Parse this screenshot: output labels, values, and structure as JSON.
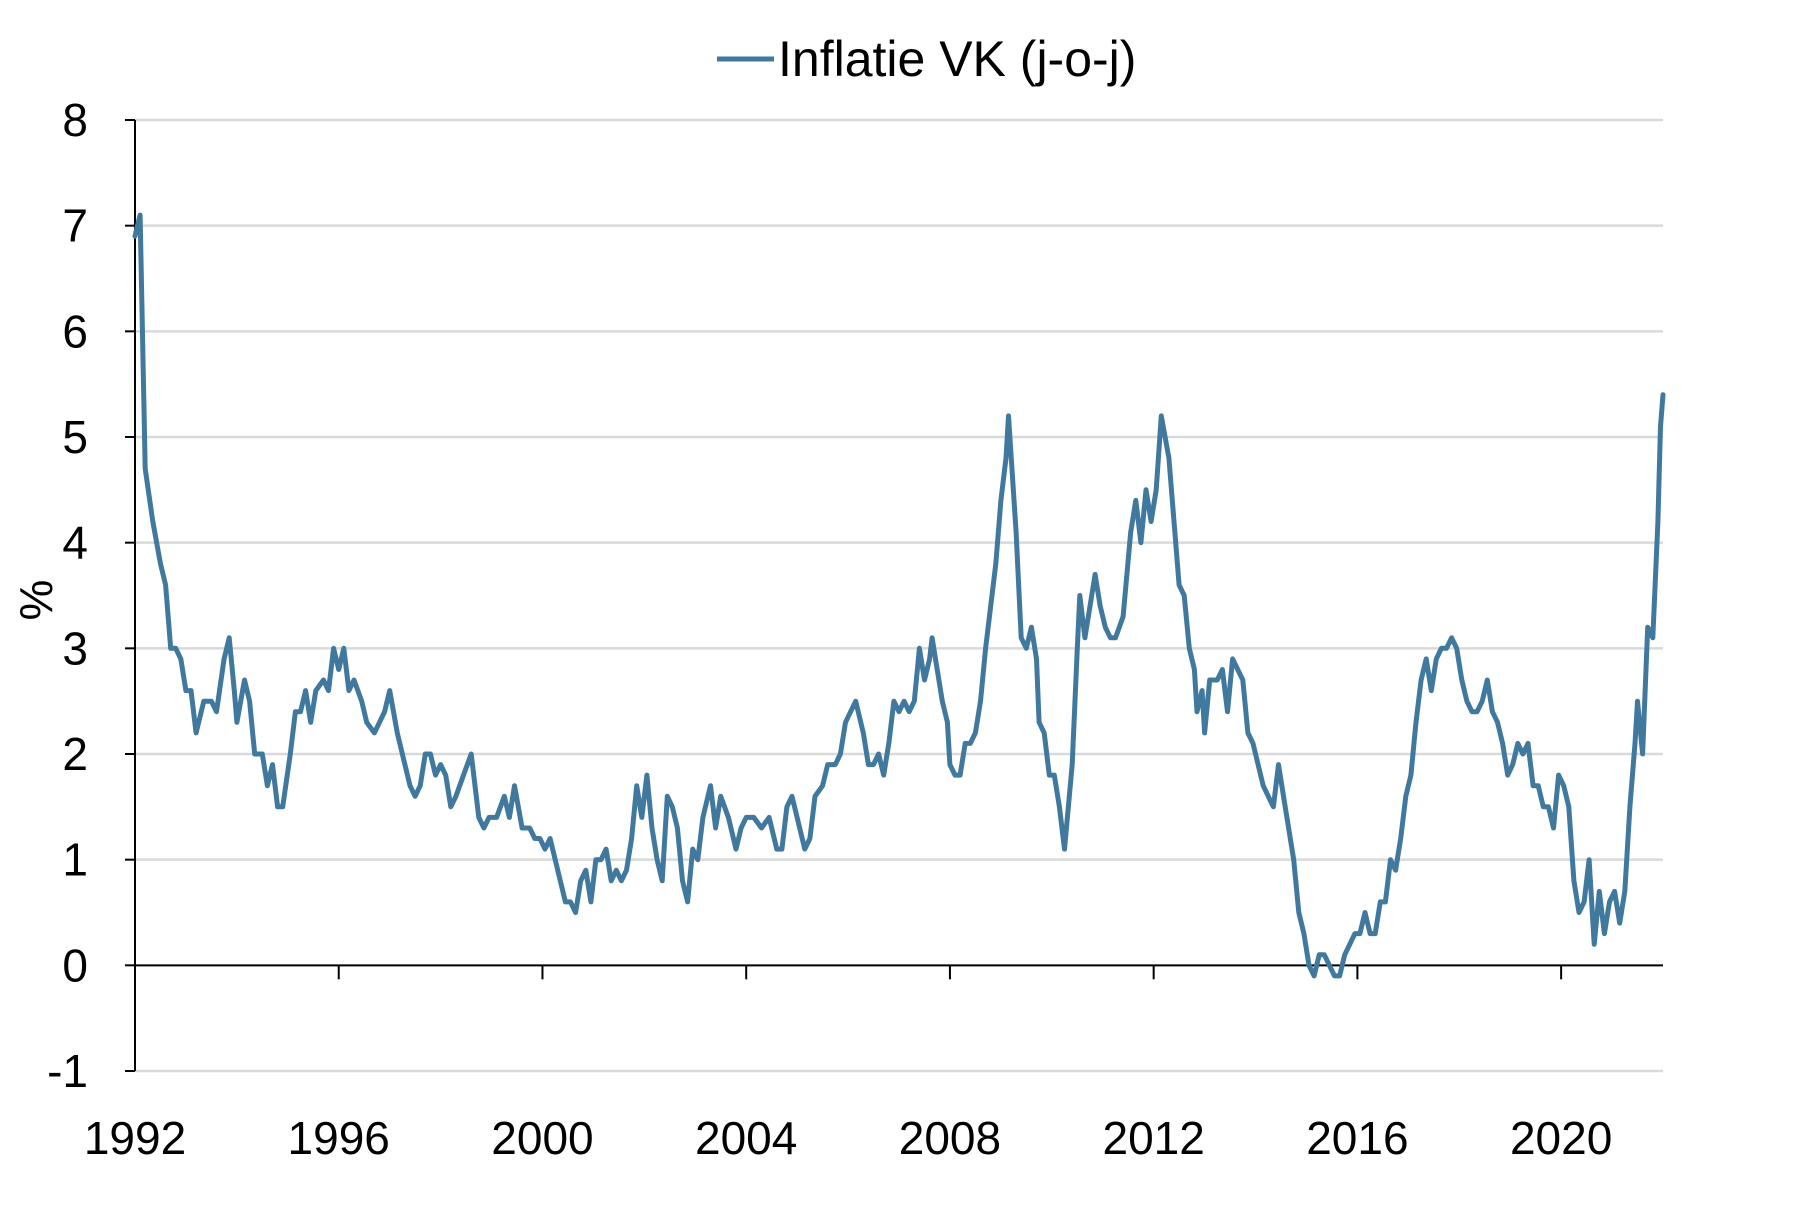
{
  "chart_data": {
    "type": "line",
    "ylabel": "%",
    "ylim": [
      -1,
      8
    ],
    "xlim": [
      1992.0,
      2022.0
    ],
    "y_ticks": [
      -1,
      0,
      1,
      2,
      3,
      4,
      5,
      6,
      7,
      8
    ],
    "x_ticks": [
      1992,
      1996,
      2000,
      2004,
      2008,
      2012,
      2016,
      2020
    ],
    "grid": "horizontal",
    "legend_position": "top-center",
    "series": [
      {
        "name": "Inflatie VK (j-o-j)",
        "color": "#41799e",
        "points": [
          [
            1992.0,
            6.9
          ],
          [
            1992.1,
            7.1
          ],
          [
            1992.2,
            4.7
          ],
          [
            1992.35,
            4.2
          ],
          [
            1992.5,
            3.8
          ],
          [
            1992.6,
            3.6
          ],
          [
            1992.7,
            3.0
          ],
          [
            1992.8,
            3.0
          ],
          [
            1992.9,
            2.9
          ],
          [
            1993.0,
            2.6
          ],
          [
            1993.1,
            2.6
          ],
          [
            1993.2,
            2.2
          ],
          [
            1993.35,
            2.5
          ],
          [
            1993.5,
            2.5
          ],
          [
            1993.6,
            2.4
          ],
          [
            1993.75,
            2.9
          ],
          [
            1993.85,
            3.1
          ],
          [
            1993.95,
            2.6
          ],
          [
            1994.0,
            2.3
          ],
          [
            1994.15,
            2.7
          ],
          [
            1994.25,
            2.5
          ],
          [
            1994.35,
            2.0
          ],
          [
            1994.5,
            2.0
          ],
          [
            1994.6,
            1.7
          ],
          [
            1994.7,
            1.9
          ],
          [
            1994.8,
            1.5
          ],
          [
            1994.9,
            1.5
          ],
          [
            1995.05,
            2.0
          ],
          [
            1995.15,
            2.4
          ],
          [
            1995.25,
            2.4
          ],
          [
            1995.35,
            2.6
          ],
          [
            1995.45,
            2.3
          ],
          [
            1995.55,
            2.6
          ],
          [
            1995.7,
            2.7
          ],
          [
            1995.8,
            2.6
          ],
          [
            1995.9,
            3.0
          ],
          [
            1996.0,
            2.8
          ],
          [
            1996.1,
            3.0
          ],
          [
            1996.2,
            2.6
          ],
          [
            1996.3,
            2.7
          ],
          [
            1996.45,
            2.5
          ],
          [
            1996.55,
            2.3
          ],
          [
            1996.7,
            2.2
          ],
          [
            1996.8,
            2.3
          ],
          [
            1996.9,
            2.4
          ],
          [
            1997.0,
            2.6
          ],
          [
            1997.15,
            2.2
          ],
          [
            1997.3,
            1.9
          ],
          [
            1997.4,
            1.7
          ],
          [
            1997.5,
            1.6
          ],
          [
            1997.6,
            1.7
          ],
          [
            1997.7,
            2.0
          ],
          [
            1997.8,
            2.0
          ],
          [
            1997.9,
            1.8
          ],
          [
            1998.0,
            1.9
          ],
          [
            1998.1,
            1.8
          ],
          [
            1998.2,
            1.5
          ],
          [
            1998.3,
            1.6
          ],
          [
            1998.45,
            1.8
          ],
          [
            1998.6,
            2.0
          ],
          [
            1998.75,
            1.4
          ],
          [
            1998.85,
            1.3
          ],
          [
            1998.95,
            1.4
          ],
          [
            1999.1,
            1.4
          ],
          [
            1999.25,
            1.6
          ],
          [
            1999.35,
            1.4
          ],
          [
            1999.45,
            1.7
          ],
          [
            1999.6,
            1.3
          ],
          [
            1999.75,
            1.3
          ],
          [
            1999.85,
            1.2
          ],
          [
            1999.95,
            1.2
          ],
          [
            2000.05,
            1.1
          ],
          [
            2000.15,
            1.2
          ],
          [
            2000.25,
            1.0
          ],
          [
            2000.35,
            0.8
          ],
          [
            2000.45,
            0.6
          ],
          [
            2000.55,
            0.6
          ],
          [
            2000.65,
            0.5
          ],
          [
            2000.75,
            0.8
          ],
          [
            2000.85,
            0.9
          ],
          [
            2000.95,
            0.6
          ],
          [
            2001.05,
            1.0
          ],
          [
            2001.15,
            1.0
          ],
          [
            2001.25,
            1.1
          ],
          [
            2001.35,
            0.8
          ],
          [
            2001.45,
            0.9
          ],
          [
            2001.55,
            0.8
          ],
          [
            2001.65,
            0.9
          ],
          [
            2001.75,
            1.2
          ],
          [
            2001.85,
            1.7
          ],
          [
            2001.95,
            1.4
          ],
          [
            2002.05,
            1.8
          ],
          [
            2002.15,
            1.3
          ],
          [
            2002.25,
            1.0
          ],
          [
            2002.35,
            0.8
          ],
          [
            2002.45,
            1.6
          ],
          [
            2002.55,
            1.5
          ],
          [
            2002.65,
            1.3
          ],
          [
            2002.75,
            0.8
          ],
          [
            2002.85,
            0.6
          ],
          [
            2002.95,
            1.1
          ],
          [
            2003.05,
            1.0
          ],
          [
            2003.15,
            1.4
          ],
          [
            2003.3,
            1.7
          ],
          [
            2003.4,
            1.3
          ],
          [
            2003.5,
            1.6
          ],
          [
            2003.65,
            1.4
          ],
          [
            2003.8,
            1.1
          ],
          [
            2003.9,
            1.3
          ],
          [
            2004.0,
            1.4
          ],
          [
            2004.15,
            1.4
          ],
          [
            2004.3,
            1.3
          ],
          [
            2004.45,
            1.4
          ],
          [
            2004.6,
            1.1
          ],
          [
            2004.7,
            1.1
          ],
          [
            2004.8,
            1.5
          ],
          [
            2004.9,
            1.6
          ],
          [
            2005.0,
            1.4
          ],
          [
            2005.15,
            1.1
          ],
          [
            2005.25,
            1.2
          ],
          [
            2005.35,
            1.6
          ],
          [
            2005.5,
            1.7
          ],
          [
            2005.6,
            1.9
          ],
          [
            2005.75,
            1.9
          ],
          [
            2005.85,
            2.0
          ],
          [
            2005.95,
            2.3
          ],
          [
            2006.15,
            2.5
          ],
          [
            2006.3,
            2.2
          ],
          [
            2006.4,
            1.9
          ],
          [
            2006.5,
            1.9
          ],
          [
            2006.6,
            2.0
          ],
          [
            2006.7,
            1.8
          ],
          [
            2006.8,
            2.1
          ],
          [
            2006.9,
            2.5
          ],
          [
            2007.0,
            2.4
          ],
          [
            2007.1,
            2.5
          ],
          [
            2007.2,
            2.4
          ],
          [
            2007.3,
            2.5
          ],
          [
            2007.4,
            3.0
          ],
          [
            2007.5,
            2.7
          ],
          [
            2007.6,
            2.9
          ],
          [
            2007.65,
            3.1
          ],
          [
            2007.75,
            2.8
          ],
          [
            2007.85,
            2.5
          ],
          [
            2007.95,
            2.3
          ],
          [
            2008.0,
            1.9
          ],
          [
            2008.1,
            1.8
          ],
          [
            2008.2,
            1.8
          ],
          [
            2008.3,
            2.1
          ],
          [
            2008.4,
            2.1
          ],
          [
            2008.5,
            2.2
          ],
          [
            2008.6,
            2.5
          ],
          [
            2008.7,
            3.0
          ],
          [
            2008.8,
            3.4
          ],
          [
            2008.9,
            3.8
          ],
          [
            2009.0,
            4.4
          ],
          [
            2009.1,
            4.8
          ],
          [
            2009.15,
            5.2
          ],
          [
            2009.3,
            4.1
          ],
          [
            2009.4,
            3.1
          ],
          [
            2009.5,
            3.0
          ],
          [
            2009.6,
            3.2
          ],
          [
            2009.7,
            2.9
          ],
          [
            2009.75,
            2.3
          ],
          [
            2009.85,
            2.2
          ],
          [
            2009.95,
            1.8
          ],
          [
            2010.05,
            1.8
          ],
          [
            2010.15,
            1.5
          ],
          [
            2010.25,
            1.1
          ],
          [
            2010.4,
            1.9
          ],
          [
            2010.5,
            3.0
          ],
          [
            2010.55,
            3.5
          ],
          [
            2010.65,
            3.1
          ],
          [
            2010.75,
            3.4
          ],
          [
            2010.85,
            3.7
          ],
          [
            2010.95,
            3.4
          ],
          [
            2011.05,
            3.2
          ],
          [
            2011.15,
            3.1
          ],
          [
            2011.25,
            3.1
          ],
          [
            2011.4,
            3.3
          ],
          [
            2011.55,
            4.1
          ],
          [
            2011.65,
            4.4
          ],
          [
            2011.75,
            4.0
          ],
          [
            2011.85,
            4.5
          ],
          [
            2011.95,
            4.2
          ],
          [
            2012.05,
            4.5
          ],
          [
            2012.15,
            5.2
          ],
          [
            2012.3,
            4.8
          ],
          [
            2012.4,
            4.2
          ],
          [
            2012.5,
            3.6
          ],
          [
            2012.6,
            3.5
          ],
          [
            2012.7,
            3.0
          ],
          [
            2012.8,
            2.8
          ],
          [
            2012.85,
            2.4
          ],
          [
            2012.95,
            2.6
          ],
          [
            2013.0,
            2.2
          ],
          [
            2013.1,
            2.7
          ],
          [
            2013.25,
            2.7
          ],
          [
            2013.35,
            2.8
          ],
          [
            2013.45,
            2.4
          ],
          [
            2013.55,
            2.9
          ],
          [
            2013.65,
            2.8
          ],
          [
            2013.75,
            2.7
          ],
          [
            2013.85,
            2.2
          ],
          [
            2013.95,
            2.1
          ],
          [
            2014.05,
            1.9
          ],
          [
            2014.15,
            1.7
          ],
          [
            2014.25,
            1.6
          ],
          [
            2014.35,
            1.5
          ],
          [
            2014.45,
            1.9
          ],
          [
            2014.55,
            1.6
          ],
          [
            2014.65,
            1.3
          ],
          [
            2014.75,
            1.0
          ],
          [
            2014.85,
            0.5
          ],
          [
            2014.95,
            0.3
          ],
          [
            2015.05,
            0.0
          ],
          [
            2015.15,
            -0.1
          ],
          [
            2015.25,
            0.1
          ],
          [
            2015.35,
            0.1
          ],
          [
            2015.45,
            0.0
          ],
          [
            2015.55,
            -0.1
          ],
          [
            2015.65,
            -0.1
          ],
          [
            2015.75,
            0.1
          ],
          [
            2015.85,
            0.2
          ],
          [
            2015.95,
            0.3
          ],
          [
            2016.05,
            0.3
          ],
          [
            2016.15,
            0.5
          ],
          [
            2016.25,
            0.3
          ],
          [
            2016.35,
            0.3
          ],
          [
            2016.45,
            0.6
          ],
          [
            2016.55,
            0.6
          ],
          [
            2016.65,
            1.0
          ],
          [
            2016.75,
            0.9
          ],
          [
            2016.85,
            1.2
          ],
          [
            2016.95,
            1.6
          ],
          [
            2017.05,
            1.8
          ],
          [
            2017.15,
            2.3
          ],
          [
            2017.25,
            2.7
          ],
          [
            2017.35,
            2.9
          ],
          [
            2017.45,
            2.6
          ],
          [
            2017.55,
            2.9
          ],
          [
            2017.65,
            3.0
          ],
          [
            2017.75,
            3.0
          ],
          [
            2017.85,
            3.1
          ],
          [
            2017.95,
            3.0
          ],
          [
            2018.05,
            2.7
          ],
          [
            2018.15,
            2.5
          ],
          [
            2018.25,
            2.4
          ],
          [
            2018.35,
            2.4
          ],
          [
            2018.45,
            2.5
          ],
          [
            2018.55,
            2.7
          ],
          [
            2018.65,
            2.4
          ],
          [
            2018.75,
            2.3
          ],
          [
            2018.85,
            2.1
          ],
          [
            2018.95,
            1.8
          ],
          [
            2019.05,
            1.9
          ],
          [
            2019.15,
            2.1
          ],
          [
            2019.25,
            2.0
          ],
          [
            2019.35,
            2.1
          ],
          [
            2019.45,
            1.7
          ],
          [
            2019.55,
            1.7
          ],
          [
            2019.65,
            1.5
          ],
          [
            2019.75,
            1.5
          ],
          [
            2019.85,
            1.3
          ],
          [
            2019.95,
            1.8
          ],
          [
            2020.05,
            1.7
          ],
          [
            2020.15,
            1.5
          ],
          [
            2020.25,
            0.8
          ],
          [
            2020.35,
            0.5
          ],
          [
            2020.45,
            0.6
          ],
          [
            2020.55,
            1.0
          ],
          [
            2020.65,
            0.2
          ],
          [
            2020.75,
            0.7
          ],
          [
            2020.85,
            0.3
          ],
          [
            2020.95,
            0.6
          ],
          [
            2021.05,
            0.7
          ],
          [
            2021.15,
            0.4
          ],
          [
            2021.25,
            0.7
          ],
          [
            2021.35,
            1.5
          ],
          [
            2021.45,
            2.1
          ],
          [
            2021.5,
            2.5
          ],
          [
            2021.6,
            2.0
          ],
          [
            2021.7,
            3.2
          ],
          [
            2021.8,
            3.1
          ],
          [
            2021.9,
            4.2
          ],
          [
            2021.95,
            5.1
          ],
          [
            2022.0,
            5.4
          ]
        ]
      }
    ]
  }
}
